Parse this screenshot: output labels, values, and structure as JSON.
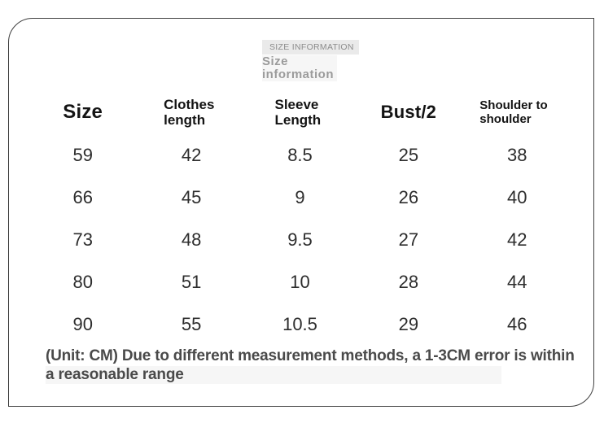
{
  "title_overlay": {
    "caps_label": "SIZE INFORMATION",
    "translated_title": "Size information"
  },
  "size_table": {
    "columns": [
      "Size",
      "Clothes length",
      "Sleeve Length",
      "Bust/2",
      "Shoulder to shoulder"
    ],
    "rows": [
      [
        "59",
        "42",
        "8.5",
        "25",
        "38"
      ],
      [
        "66",
        "45",
        "9",
        "26",
        "40"
      ],
      [
        "73",
        "48",
        "9.5",
        "27",
        "42"
      ],
      [
        "80",
        "51",
        "10",
        "28",
        "44"
      ],
      [
        "90",
        "55",
        "10.5",
        "29",
        "46"
      ]
    ],
    "unit": "CM"
  },
  "note": {
    "line1": "(Unit: CM) Due to different measurement methods, a 1-3CM error is within",
    "line2": "a reasonable range"
  },
  "colors": {
    "card_border": "#3f3f3f",
    "header_text": "#141414",
    "cell_text": "#2d2d2d",
    "note_text": "#4a4a4a",
    "overlay_bg": "#eaeaea",
    "overlay_text": "#8c8c8c",
    "translated_title_text": "#9b9b9b"
  }
}
